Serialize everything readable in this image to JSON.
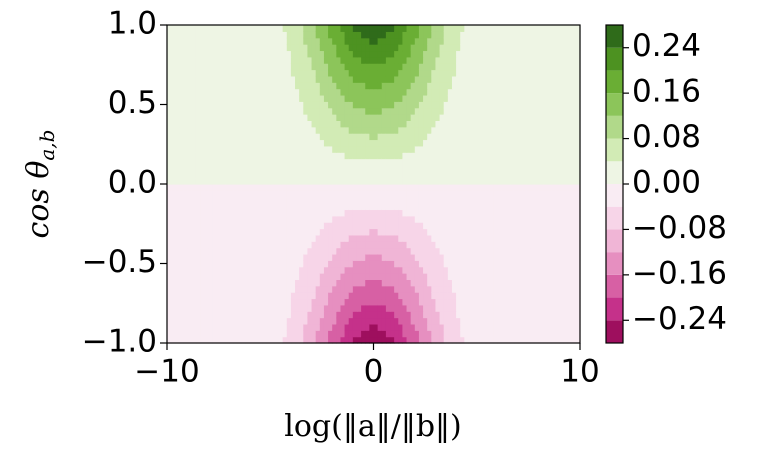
{
  "chart_data": {
    "type": "contour",
    "xlabel": "log(‖a‖/‖b‖)",
    "ylabel": "cos θ",
    "ylabel_subscript": "a,b",
    "x": [
      -10,
      -9,
      -8,
      -7,
      -6,
      -5,
      -4,
      -3,
      -2,
      -1,
      0,
      1,
      2,
      3,
      4,
      5,
      6,
      7,
      8,
      9,
      10
    ],
    "y": [
      -1,
      -0.8,
      -0.6,
      -0.4,
      -0.2,
      0,
      0.2,
      0.4,
      0.6,
      0.8,
      1
    ],
    "z": [
      [
        -1e-05,
        -0.0001,
        -0.0004,
        -0.0017,
        -0.0066,
        -0.0204,
        -0.0517,
        -0.1065,
        -0.1786,
        -0.2435,
        -0.27,
        -0.2435,
        -0.1786,
        -0.1065,
        -0.0517,
        -0.0204,
        -0.0066,
        -0.0017,
        -0.0004,
        -0.0001,
        -1e-05
      ],
      [
        -8e-06,
        -8e-05,
        -0.0003,
        -0.0014,
        -0.0053,
        -0.0163,
        -0.0414,
        -0.0852,
        -0.1429,
        -0.1948,
        -0.216,
        -0.1948,
        -0.1429,
        -0.0852,
        -0.0414,
        -0.0163,
        -0.0053,
        -0.0014,
        -0.0003,
        -8e-05,
        -8e-06
      ],
      [
        -6e-06,
        -6e-05,
        -0.0002,
        -0.001,
        -0.004,
        -0.0122,
        -0.031,
        -0.0639,
        -0.1072,
        -0.1461,
        -0.162,
        -0.1461,
        -0.1072,
        -0.0639,
        -0.031,
        -0.0122,
        -0.004,
        -0.001,
        -0.0002,
        -6e-05,
        -6e-06
      ],
      [
        -4e-06,
        -4e-05,
        -0.0002,
        -0.0007,
        -0.0026,
        -0.0082,
        -0.0207,
        -0.0426,
        -0.0714,
        -0.0974,
        -0.108,
        -0.0974,
        -0.0714,
        -0.0426,
        -0.0207,
        -0.0082,
        -0.0026,
        -0.0007,
        -0.0002,
        -4e-05,
        -4e-06
      ],
      [
        -2e-06,
        -2e-05,
        -0.0001,
        -0.0003,
        -0.0013,
        -0.0041,
        -0.0103,
        -0.0213,
        -0.0357,
        -0.0487,
        -0.054,
        -0.0487,
        -0.0357,
        -0.0213,
        -0.0103,
        -0.0041,
        -0.0013,
        -0.0003,
        -0.0001,
        -2e-05,
        -2e-06
      ],
      [
        0,
        0,
        0,
        0,
        0,
        0,
        0,
        0,
        0,
        0,
        0,
        0,
        0,
        0,
        0,
        0,
        0,
        0,
        0,
        0,
        0
      ],
      [
        2e-06,
        2e-05,
        0.0001,
        0.0003,
        0.0013,
        0.0041,
        0.0103,
        0.0213,
        0.0357,
        0.0487,
        0.054,
        0.0487,
        0.0357,
        0.0213,
        0.0103,
        0.0041,
        0.0013,
        0.0003,
        0.0001,
        2e-05,
        2e-06
      ],
      [
        4e-06,
        4e-05,
        0.0002,
        0.0007,
        0.0026,
        0.0082,
        0.0207,
        0.0426,
        0.0714,
        0.0974,
        0.108,
        0.0974,
        0.0714,
        0.0426,
        0.0207,
        0.0082,
        0.0026,
        0.0007,
        0.0002,
        4e-05,
        4e-06
      ],
      [
        6e-06,
        6e-05,
        0.0002,
        0.001,
        0.004,
        0.0122,
        0.031,
        0.0639,
        0.1072,
        0.1461,
        0.162,
        0.1461,
        0.1072,
        0.0639,
        0.031,
        0.0122,
        0.004,
        0.001,
        0.0002,
        6e-05,
        6e-06
      ],
      [
        8e-06,
        8e-05,
        0.0003,
        0.0014,
        0.0053,
        0.0163,
        0.0414,
        0.0852,
        0.1429,
        0.1948,
        0.216,
        0.1948,
        0.1429,
        0.0852,
        0.0414,
        0.0163,
        0.0053,
        0.0014,
        0.0003,
        8e-05,
        8e-06
      ],
      [
        1e-05,
        0.0001,
        0.0004,
        0.0017,
        0.0066,
        0.0204,
        0.0517,
        0.1065,
        0.1786,
        0.2435,
        0.27,
        0.2435,
        0.1786,
        0.1065,
        0.0517,
        0.0204,
        0.0066,
        0.0017,
        0.0004,
        0.0001,
        1e-05
      ]
    ],
    "levels": [
      -0.28,
      -0.24,
      -0.2,
      -0.16,
      -0.12,
      -0.08,
      -0.04,
      0,
      0.04,
      0.08,
      0.12,
      0.16,
      0.2,
      0.24,
      0.28
    ],
    "colors": [
      "#9e0f5e",
      "#c5318a",
      "#d760a4",
      "#e68fc0",
      "#f0b5d6",
      "#f7d5e8",
      "#f9ecf3",
      "#eef5e4",
      "#d2ebb5",
      "#b1d98a",
      "#8cc55a",
      "#6aae34",
      "#4d9221",
      "#2f6b1a"
    ],
    "xlim": [
      -10,
      10
    ],
    "xticks": [
      {
        "value": -10,
        "label": "−10"
      },
      0,
      10
    ],
    "ylim": [
      -1,
      1
    ],
    "yticks": [
      {
        "value": -1,
        "label": "−1.0"
      },
      {
        "value": -0.5,
        "label": "−0.5"
      },
      {
        "value": 0,
        "label": "0.0"
      },
      {
        "value": 0.5,
        "label": "0.5"
      },
      {
        "value": 1,
        "label": "1.0"
      }
    ],
    "clim": [
      -0.28,
      0.28
    ],
    "cticks": [
      {
        "value": -0.24,
        "label": "−0.24"
      },
      {
        "value": -0.16,
        "label": "−0.16"
      },
      {
        "value": -0.08,
        "label": "−0.08"
      },
      {
        "value": 0,
        "label": "0.00"
      },
      {
        "value": 0.08,
        "label": "0.08"
      },
      {
        "value": 0.16,
        "label": "0.16"
      },
      {
        "value": 0.24,
        "label": "0.24"
      }
    ]
  }
}
